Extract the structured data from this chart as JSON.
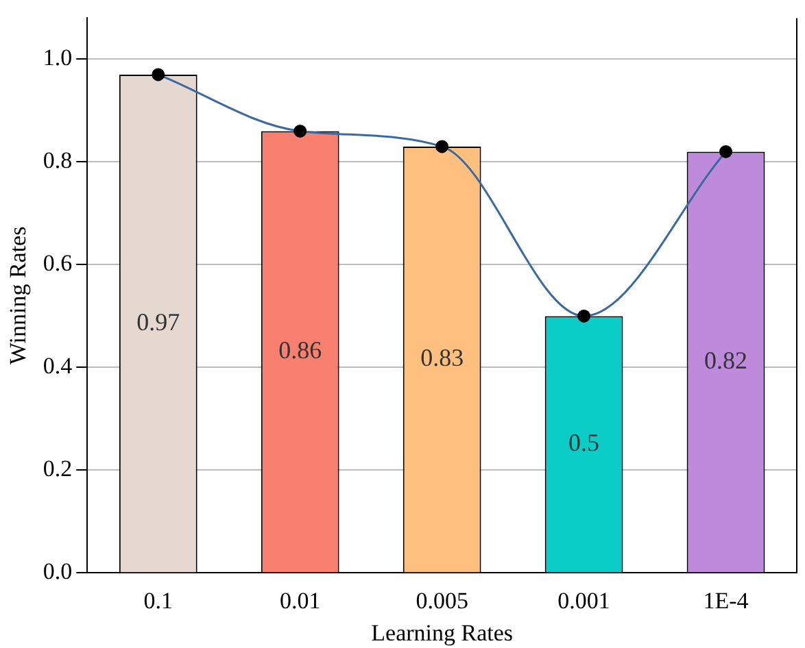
{
  "chart_data": {
    "type": "bar",
    "xlabel": "Learning Rates",
    "ylabel": "Winning Rates",
    "categories": [
      "0.1",
      "0.01",
      "0.005",
      "0.001",
      "1E-4"
    ],
    "series": [
      {
        "colors": [
          "#e5d8d0",
          "#f97f6f",
          "#ffbf7f",
          "#0bcdc8",
          "#be8bdc"
        ],
        "values": [
          0.97,
          0.86,
          0.83,
          0.5,
          0.82
        ],
        "value_labels": [
          "0.97",
          "0.86",
          "0.83",
          "0.5",
          "0.82"
        ]
      },
      {
        "type": "line",
        "color": "#3a6aa0",
        "values": [
          0.97,
          0.86,
          0.83,
          0.5,
          0.82
        ]
      }
    ],
    "marker": "circle",
    "line_style": "solid",
    "ylim": [
      0,
      1.08
    ],
    "yticks": [
      {
        "value": 0,
        "label": "0.0"
      },
      {
        "value": 0.2,
        "label": "0.2"
      },
      {
        "value": 0.4,
        "label": "0.4"
      },
      {
        "value": 0.6,
        "label": "0.6"
      },
      {
        "value": 0.8,
        "label": "0.8"
      },
      {
        "value": 1,
        "label": "1.0"
      }
    ],
    "grid": "y",
    "legend": false
  }
}
